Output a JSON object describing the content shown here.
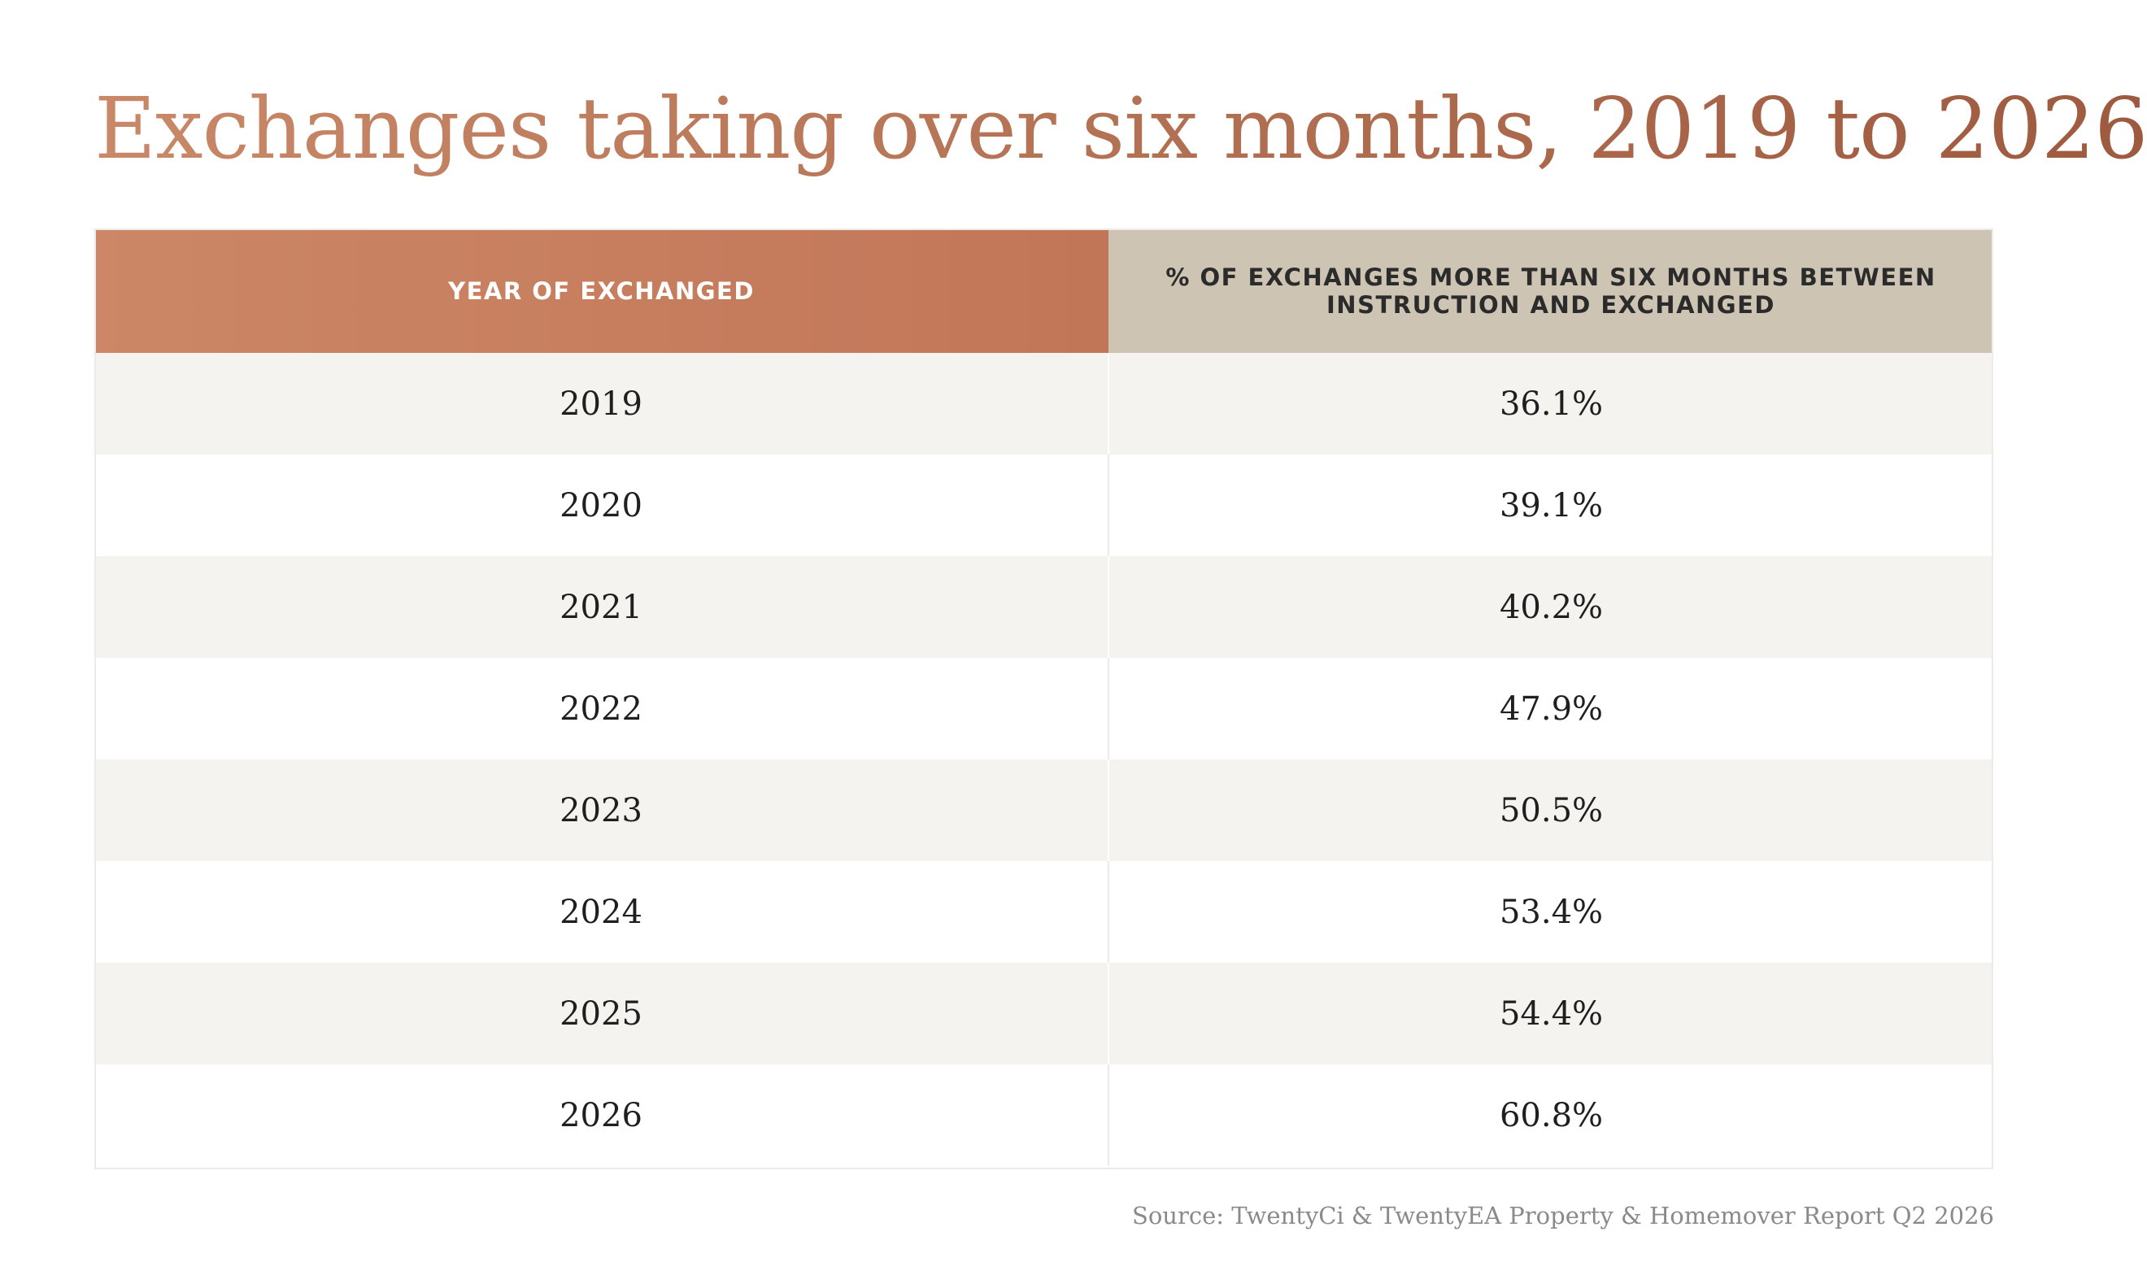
{
  "title": "Exchanges taking over six months, 2019 to 2026",
  "source": "Source: TwentyCi & TwentyEA Property & Homemover Report Q2 2026",
  "colors": {
    "title_start": "#c98968",
    "title_end": "#9e5a3f",
    "header_year_bg": "#c7805f",
    "header_pct_bg": "#cdc4b3",
    "row_alt_bg": "#f4f3ef"
  },
  "chart_data": {
    "type": "table",
    "title": "Exchanges taking over six months, 2019 to 2026",
    "columns": [
      "YEAR OF EXCHANGED",
      "% OF EXCHANGES MORE THAN SIX MONTHS BETWEEN INSTRUCTION AND EXCHANGED"
    ],
    "rows": [
      [
        "2019",
        "36.1%"
      ],
      [
        "2020",
        "39.1%"
      ],
      [
        "2021",
        "40.2%"
      ],
      [
        "2022",
        "47.9%"
      ],
      [
        "2023",
        "50.5%"
      ],
      [
        "2024",
        "53.4%"
      ],
      [
        "2025",
        "54.4%"
      ],
      [
        "2026",
        "60.8%"
      ]
    ],
    "source": "Source: TwentyCi & TwentyEA Property & Homemover Report Q2 2026"
  }
}
